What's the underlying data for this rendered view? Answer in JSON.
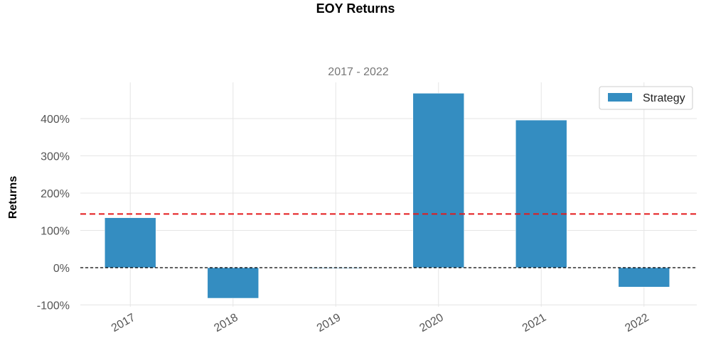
{
  "chart_data": {
    "type": "bar",
    "title": "EOY Returns",
    "subtitle": "2017 - 2022",
    "ylabel": "Returns",
    "xlabel": "",
    "categories": [
      "2017",
      "2018",
      "2019",
      "2020",
      "2021",
      "2022"
    ],
    "series": [
      {
        "name": "Strategy",
        "values": [
          134,
          -82,
          -2,
          468,
          396,
          -52
        ],
        "color": "#348dc1"
      }
    ],
    "mean_line": {
      "value": 144,
      "color": "#e31a1c",
      "style": "dashed"
    },
    "zero_line": {
      "value": 0,
      "color": "#000000",
      "style": "dashed"
    },
    "yticks": [
      -100,
      0,
      100,
      200,
      300,
      400
    ],
    "ytick_labels": [
      "-100%",
      "0%",
      "100%",
      "200%",
      "300%",
      "400%"
    ],
    "ylim": [
      -110,
      500
    ],
    "grid": true,
    "legend": "top-right"
  }
}
